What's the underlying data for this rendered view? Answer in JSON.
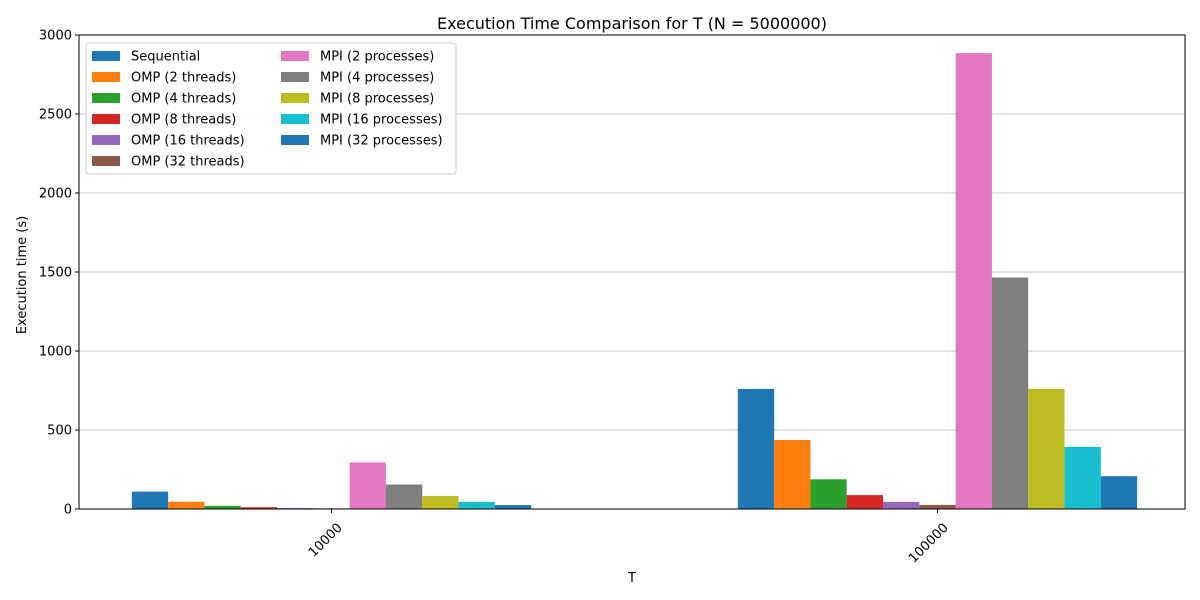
{
  "chart_data": {
    "type": "bar",
    "title": "Execution Time Comparison for T (N = 5000000)",
    "xlabel": "T",
    "ylabel": "Execution time (s)",
    "categories": [
      "10000",
      "100000"
    ],
    "ylim": [
      0,
      3000
    ],
    "yticks": [
      0,
      500,
      1000,
      1500,
      2000,
      2500,
      3000
    ],
    "grid": "y",
    "legend_position": "top-left",
    "legend_columns": 2,
    "series": [
      {
        "name": "Sequential",
        "color": "#1f77b4",
        "values": [
          110,
          760
        ]
      },
      {
        "name": "OMP (2 threads)",
        "color": "#ff7f0e",
        "values": [
          46,
          437
        ]
      },
      {
        "name": "OMP (4 threads)",
        "color": "#2ca02c",
        "values": [
          20,
          188
        ]
      },
      {
        "name": "OMP (8 threads)",
        "color": "#d62728",
        "values": [
          11,
          88
        ]
      },
      {
        "name": "OMP (16 threads)",
        "color": "#9467bd",
        "values": [
          6,
          45
        ]
      },
      {
        "name": "OMP (32 threads)",
        "color": "#8c564b",
        "values": [
          4,
          26
        ]
      },
      {
        "name": "MPI (2 processes)",
        "color": "#e377c2",
        "values": [
          295,
          2885
        ]
      },
      {
        "name": "MPI (4 processes)",
        "color": "#7f7f7f",
        "values": [
          155,
          1465
        ]
      },
      {
        "name": "MPI (8 processes)",
        "color": "#bcbd22",
        "values": [
          82,
          760
        ]
      },
      {
        "name": "MPI (16 processes)",
        "color": "#17becf",
        "values": [
          45,
          393
        ]
      },
      {
        "name": "MPI (32 processes)",
        "color": "#1f77b4",
        "values": [
          25,
          208
        ]
      }
    ]
  }
}
